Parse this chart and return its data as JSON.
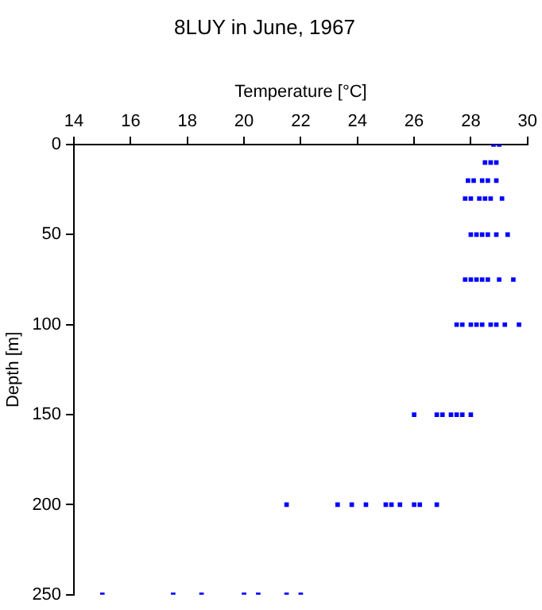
{
  "chart_data": {
    "type": "scatter",
    "title": "8LUY in June, 1967",
    "xlabel": "Temperature [°C]",
    "ylabel": "Depth [m]",
    "x": [
      28.8,
      29.0,
      28.5,
      28.7,
      28.9,
      27.9,
      28.1,
      28.4,
      28.6,
      28.9,
      27.8,
      28.0,
      28.3,
      28.5,
      28.7,
      29.1,
      28.0,
      28.2,
      28.4,
      28.6,
      28.9,
      29.3,
      27.8,
      28.0,
      28.2,
      28.4,
      28.6,
      29.0,
      29.5,
      27.5,
      27.7,
      28.0,
      28.2,
      28.4,
      28.7,
      28.9,
      29.2,
      29.7,
      26.0,
      26.8,
      27.0,
      27.3,
      27.5,
      27.7,
      28.0,
      21.5,
      23.3,
      23.8,
      24.3,
      25.0,
      25.2,
      25.5,
      26.0,
      26.2,
      26.8,
      15.0,
      17.5,
      18.5,
      20.0,
      20.5,
      21.5,
      22.0
    ],
    "values": [
      0,
      0,
      10,
      10,
      10,
      20,
      20,
      20,
      20,
      20,
      30,
      30,
      30,
      30,
      30,
      30,
      50,
      50,
      50,
      50,
      50,
      50,
      75,
      75,
      75,
      75,
      75,
      75,
      75,
      100,
      100,
      100,
      100,
      100,
      100,
      100,
      100,
      100,
      150,
      150,
      150,
      150,
      150,
      150,
      150,
      200,
      200,
      200,
      200,
      200,
      200,
      200,
      200,
      200,
      200,
      250,
      250,
      250,
      250,
      250,
      250,
      250
    ],
    "color": "#0000ff",
    "marker": "square",
    "xlim": [
      14,
      30
    ],
    "xticks": [
      14,
      16,
      18,
      20,
      22,
      24,
      26,
      28,
      30
    ],
    "ylim": [
      250,
      0
    ],
    "yticks": [
      0,
      50,
      100,
      150,
      200,
      250
    ],
    "grid": false,
    "legend": false
  }
}
